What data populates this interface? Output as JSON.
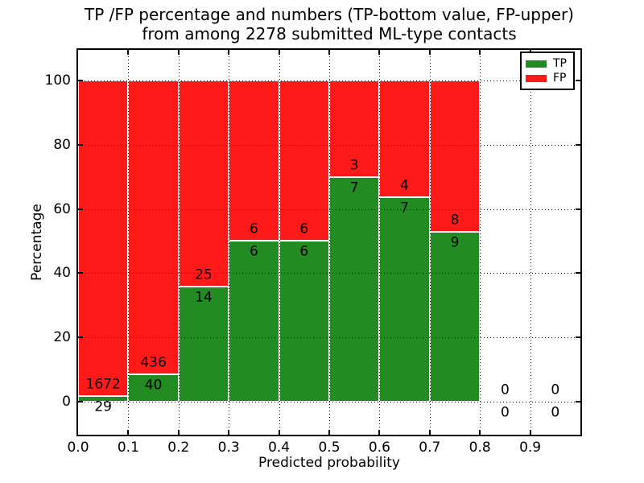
{
  "chart_data": {
    "type": "bar",
    "subtype": "stacked-percentage-histogram",
    "title_line1": "TP /FP percentage and numbers (TP-bottom value, FP-upper)",
    "title_line2": "from among 2278 submitted ML-type contacts",
    "title": "TP /FP percentage and numbers (TP-bottom value, FP-upper)\nfrom among 2278 submitted ML-type contacts",
    "xlabel": "Predicted probability",
    "ylabel": "Percentage",
    "total_contacts": 2278,
    "bin_width": 0.1,
    "x_bins": [
      0.0,
      0.1,
      0.2,
      0.3,
      0.4,
      0.5,
      0.6,
      0.7,
      0.8,
      0.9
    ],
    "series": [
      {
        "name": "TP",
        "color": "#228b22",
        "counts": [
          29,
          40,
          14,
          6,
          6,
          7,
          7,
          9,
          0,
          0
        ]
      },
      {
        "name": "FP",
        "color": "#ff1a1a",
        "counts": [
          1672,
          436,
          25,
          6,
          6,
          3,
          4,
          8,
          0,
          0
        ]
      }
    ],
    "tp_percent": [
      1.7,
      8.4,
      35.9,
      50.0,
      50.0,
      70.0,
      63.6,
      52.9,
      0.0,
      0.0
    ],
    "x_ticks": [
      "0.0",
      "0.1",
      "0.2",
      "0.3",
      "0.4",
      "0.5",
      "0.6",
      "0.7",
      "0.8",
      "0.9"
    ],
    "y_ticks": [
      0,
      20,
      40,
      60,
      80,
      100
    ],
    "xlim": [
      0.0,
      1.0
    ],
    "ylim": [
      -10.3,
      109.5
    ],
    "grid": "dotted",
    "legend": {
      "position": "upper right",
      "entries": [
        "TP",
        "FP"
      ]
    }
  }
}
